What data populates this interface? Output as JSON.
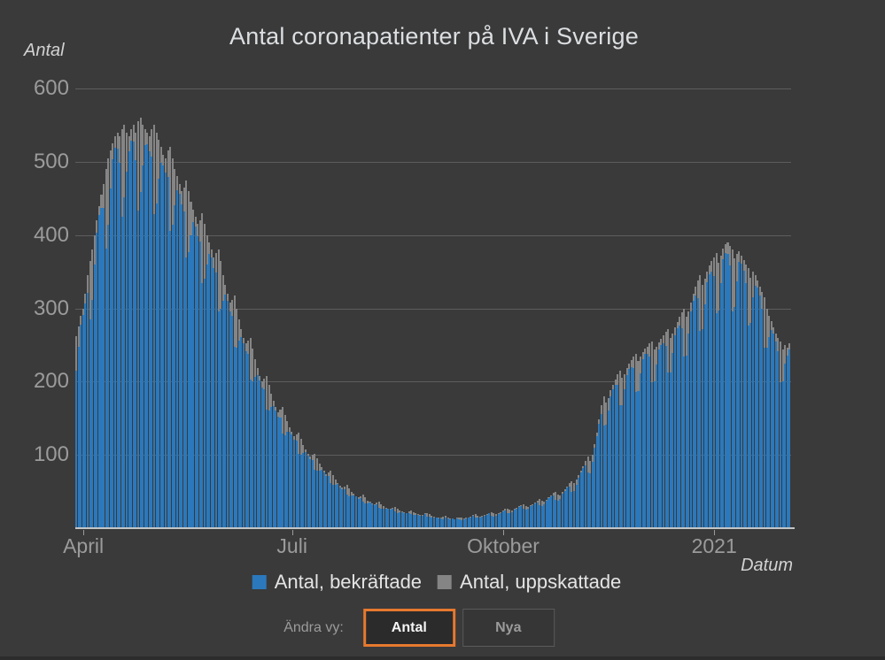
{
  "chart_data": {
    "type": "bar",
    "stacked": true,
    "title": "Antal coronapatienter på IVA i Sverige",
    "ylabel": "Antal",
    "xlabel": "Datum",
    "ylim": [
      0,
      600
    ],
    "yticks": [
      100,
      200,
      300,
      400,
      500,
      600
    ],
    "grid": "horizontal",
    "legend_position": "bottom",
    "start_date": "2020-03-29",
    "frequency": "daily",
    "xticks": [
      {
        "label": "April",
        "index": 3
      },
      {
        "label": "Juli",
        "index": 94
      },
      {
        "label": "Oktober",
        "index": 186
      },
      {
        "label": "2021",
        "index": 278
      }
    ],
    "series": [
      {
        "name": "Antal, bekräftade",
        "color": "#2b79bc",
        "values": [
          215,
          247,
          278,
          291,
          307,
          321,
          285,
          312,
          360,
          403,
          427,
          437,
          437,
          382,
          414,
          463,
          504,
          519,
          518,
          498,
          425,
          451,
          486,
          514,
          529,
          528,
          502,
          433,
          459,
          495,
          523,
          524,
          514,
          507,
          429,
          443,
          477,
          499,
          495,
          485,
          479,
          406,
          414,
          441,
          461,
          456,
          442,
          432,
          370,
          377,
          400,
          418,
          412,
          398,
          391,
          335,
          340,
          360,
          374,
          369,
          355,
          349,
          296,
          299,
          310,
          319,
          310,
          296,
          290,
          248,
          246,
          256,
          261,
          252,
          242,
          238,
          203,
          201,
          207,
          209,
          202,
          192,
          190,
          162,
          161,
          166,
          167,
          161,
          152,
          151,
          129,
          127,
          131,
          132,
          128,
          121,
          119,
          101,
          100,
          103,
          104,
          99,
          94,
          93,
          80,
          78,
          79,
          80,
          76,
          71,
          71,
          61,
          59,
          59,
          60,
          56,
          53,
          53,
          46,
          44,
          45,
          45,
          43,
          40,
          41,
          36,
          34,
          34,
          35,
          33,
          32,
          33,
          28,
          27,
          27,
          27,
          26,
          25,
          26,
          23,
          21,
          22,
          22,
          21,
          20,
          21,
          19,
          18,
          18,
          18,
          17,
          17,
          19,
          16,
          16,
          15,
          15,
          15,
          13,
          13,
          12,
          14,
          13,
          12,
          13,
          12,
          13,
          12,
          11,
          12,
          13,
          15,
          15,
          17,
          15,
          14,
          14,
          16,
          17,
          18,
          20,
          17,
          16,
          17,
          19,
          21,
          23,
          24,
          21,
          20,
          22,
          25,
          27,
          29,
          30,
          26,
          25,
          26,
          30,
          32,
          34,
          35,
          31,
          30,
          32,
          37,
          41,
          43,
          45,
          39,
          38,
          40,
          47,
          51,
          55,
          57,
          50,
          51,
          59,
          69,
          76,
          82,
          86,
          76,
          75,
          90,
          110,
          126,
          142,
          156,
          140,
          141,
          160,
          180,
          190,
          195,
          195,
          168,
          168,
          189,
          209,
          217,
          220,
          218,
          186,
          187,
          211,
          230,
          238,
          238,
          234,
          199,
          200,
          223,
          244,
          250,
          252,
          249,
          212,
          213,
          239,
          263,
          273,
          276,
          273,
          234,
          236,
          266,
          296,
          310,
          317,
          314,
          269,
          272,
          306,
          336,
          347,
          350,
          344,
          293,
          297,
          335,
          367,
          376,
          374,
          358,
          296,
          302,
          337,
          363,
          361,
          351,
          335,
          277,
          280,
          315,
          331,
          328,
          317,
          299,
          246,
          246,
          261,
          271,
          266,
          255,
          242,
          199,
          200,
          225,
          236,
          244
        ]
      },
      {
        "name": "Antal, uppskattade",
        "color": "#858585",
        "values": [
          47,
          28,
          12,
          9,
          13,
          24,
          80,
          68,
          40,
          17,
          13,
          18,
          33,
          108,
          91,
          52,
          21,
          16,
          22,
          37,
          120,
          99,
          54,
          21,
          16,
          22,
          38,
          122,
          101,
          55,
          22,
          16,
          21,
          38,
          121,
          97,
          53,
          21,
          15,
          20,
          36,
          114,
          91,
          49,
          19,
          14,
          18,
          33,
          105,
          83,
          45,
          17,
          13,
          17,
          29,
          95,
          75,
          40,
          16,
          11,
          15,
          26,
          84,
          66,
          35,
          13,
          10,
          12,
          22,
          70,
          54,
          29,
          11,
          8,
          10,
          18,
          57,
          44,
          23,
          9,
          6,
          8,
          14,
          46,
          35,
          18,
          7,
          5,
          6,
          11,
          36,
          28,
          15,
          6,
          4,
          5,
          9,
          29,
          22,
          11,
          4,
          3,
          4,
          7,
          22,
          17,
          9,
          3,
          2,
          3,
          5,
          17,
          13,
          7,
          2,
          2,
          2,
          4,
          13,
          10,
          5,
          2,
          1,
          2,
          3,
          10,
          8,
          4,
          1,
          1,
          1,
          2,
          8,
          6,
          3,
          1,
          1,
          1,
          2,
          6,
          5,
          2,
          1,
          1,
          1,
          2,
          5,
          4,
          2,
          1,
          1,
          1,
          1,
          5,
          3,
          2,
          1,
          0,
          1,
          1,
          4,
          3,
          2,
          1,
          0,
          0,
          1,
          3,
          3,
          1,
          1,
          0,
          1,
          1,
          4,
          3,
          2,
          1,
          1,
          1,
          1,
          5,
          4,
          2,
          1,
          1,
          1,
          2,
          6,
          5,
          2,
          1,
          1,
          1,
          2,
          7,
          5,
          3,
          1,
          1,
          1,
          3,
          9,
          7,
          4,
          2,
          1,
          2,
          3,
          11,
          8,
          5,
          2,
          2,
          2,
          4,
          14,
          11,
          7,
          3,
          2,
          3,
          6,
          22,
          17,
          10,
          5,
          4,
          6,
          12,
          40,
          31,
          18,
          8,
          6,
          8,
          15,
          47,
          37,
          21,
          9,
          7,
          9,
          16,
          52,
          41,
          23,
          10,
          7,
          10,
          18,
          56,
          44,
          25,
          10,
          8,
          11,
          19,
          60,
          47,
          27,
          11,
          8,
          12,
          21,
          66,
          52,
          30,
          12,
          10,
          13,
          24,
          76,
          60,
          34,
          14,
          11,
          15,
          26,
          82,
          65,
          37,
          15,
          12,
          16,
          27,
          84,
          66,
          37,
          15,
          11,
          15,
          25,
          78,
          62,
          35,
          14,
          10,
          13,
          23,
          69,
          54,
          29,
          11,
          8,
          11,
          18,
          56,
          44,
          25,
          10,
          8
        ]
      }
    ]
  },
  "controls": {
    "label": "Ändra vy:",
    "buttons": [
      {
        "label": "Antal",
        "active": true
      },
      {
        "label": "Nya",
        "active": false
      }
    ]
  },
  "colors": {
    "background": "#3a3a3a",
    "accent_orange": "#e7792f",
    "confirmed_blue": "#2b79bc",
    "estimated_gray": "#858585",
    "baseline": "#c2c5c8",
    "gridline": "#5d5d5d",
    "tick_text": "#9b9b9b"
  }
}
